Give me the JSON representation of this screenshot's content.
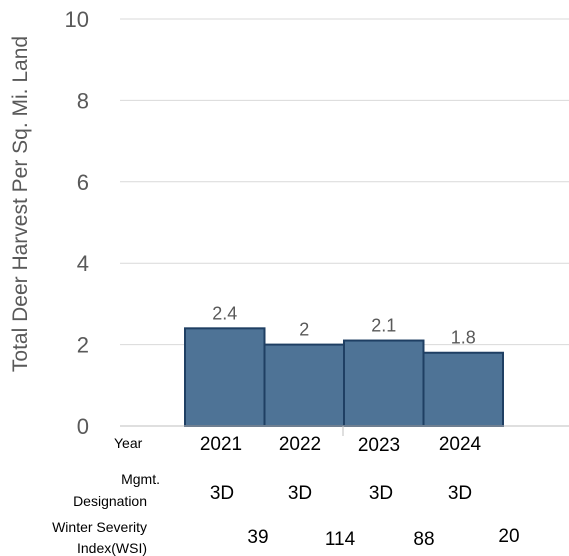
{
  "chart_data": {
    "type": "bar",
    "categories": [
      "2021",
      "2022",
      "2023",
      "2024"
    ],
    "values": [
      2.4,
      2,
      2.1,
      1.8
    ],
    "data_labels": [
      "2.4",
      "2",
      "2.1",
      "1.8"
    ],
    "ylabel": "Total Deer Harvest Per Sq. Mi. Land",
    "ylim": [
      0,
      10
    ],
    "yticks": [
      "0",
      "2",
      "4",
      "6",
      "8",
      "10"
    ],
    "grid": true,
    "legend": "none",
    "bar_color": "#4e7396",
    "bar_edge_color": "#1f3f63",
    "table_rows": [
      {
        "label": [
          "Year"
        ],
        "values": [
          "2021",
          "2022",
          "2023",
          "2024"
        ]
      },
      {
        "label": [
          "Mgmt.",
          "Designation"
        ],
        "values": [
          "3D",
          "3D",
          "3D",
          "3D"
        ]
      },
      {
        "label": [
          "Winter Severity",
          "Index(WSI)"
        ],
        "values": [
          "39",
          "114",
          "88",
          "20"
        ]
      }
    ]
  }
}
